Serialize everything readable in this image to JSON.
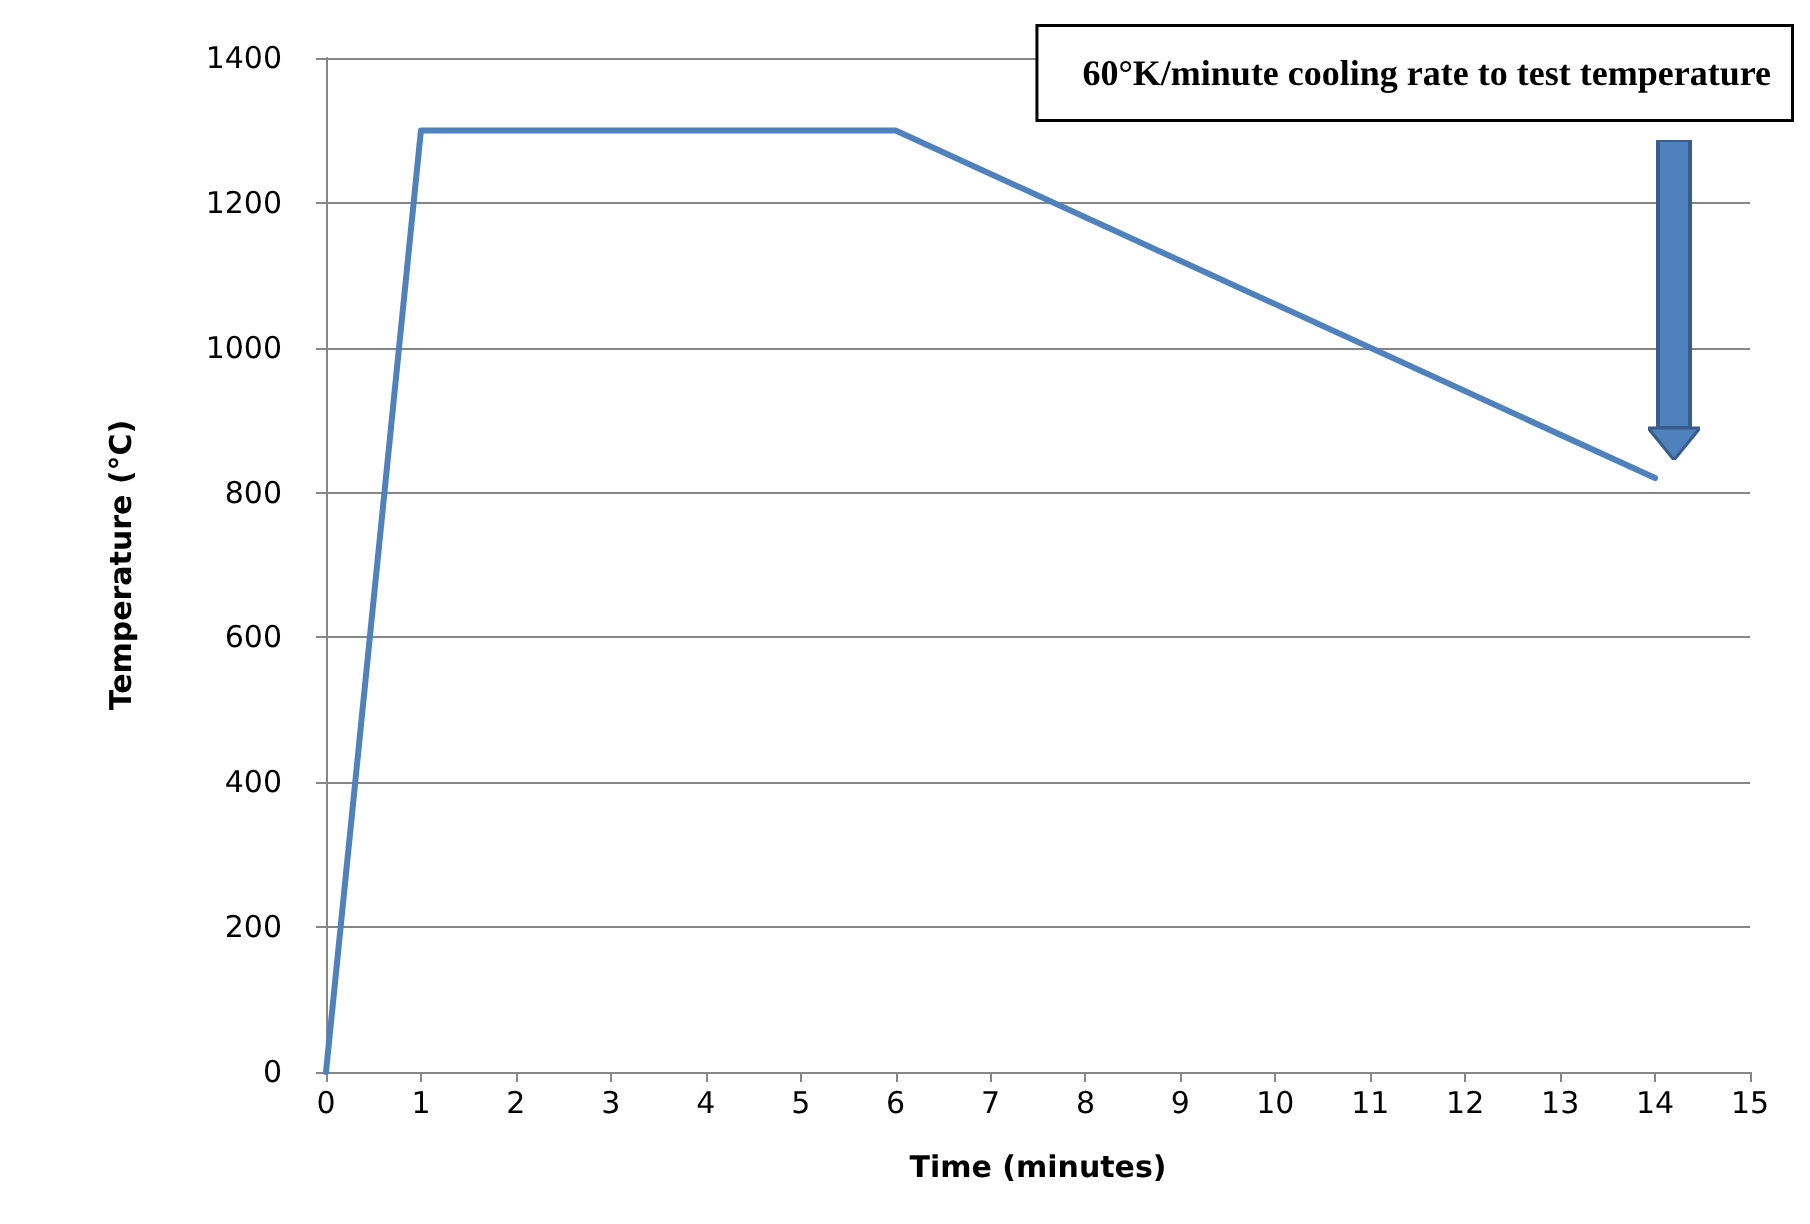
{
  "chart_data": {
    "type": "line",
    "xlabel": "Time (minutes)",
    "ylabel": "Temperature (°C)",
    "annotations": [
      "60°K/minute cooling rate to test temperature"
    ],
    "x": [
      0,
      1,
      6,
      14
    ],
    "series": [
      {
        "color": "#4f81bd",
        "values": [
          0,
          1300,
          1300,
          820
        ]
      }
    ],
    "xlim": [
      0,
      15
    ],
    "xticks": [
      0,
      1,
      2,
      3,
      4,
      5,
      6,
      7,
      8,
      9,
      10,
      11,
      12,
      13,
      14,
      15
    ],
    "ylim": [
      0,
      1400
    ],
    "yticks": [
      0,
      200,
      400,
      600,
      800,
      1000,
      1200,
      1400
    ],
    "grid": "y",
    "marker": "none",
    "line_style": "solid"
  }
}
